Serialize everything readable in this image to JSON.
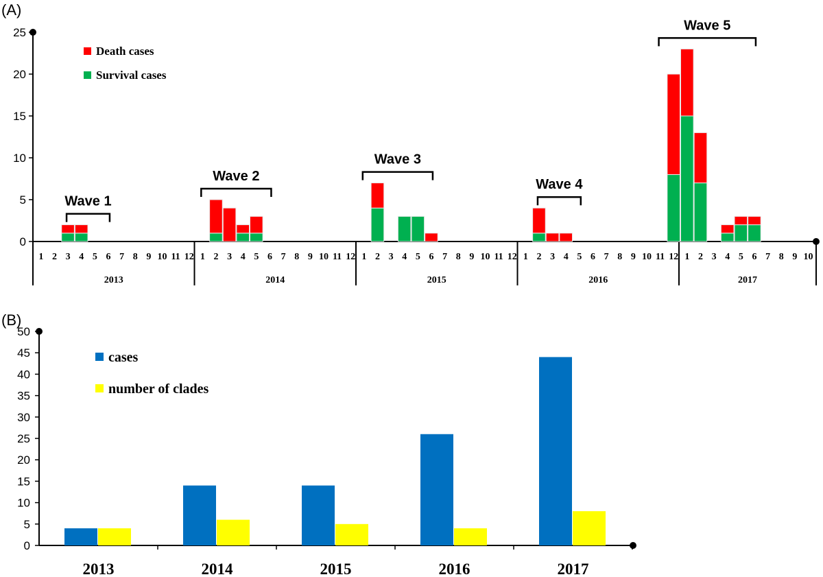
{
  "panels": {
    "a_label": "(A)",
    "b_label": "(B)"
  },
  "colors": {
    "death": "#ff0000",
    "survival": "#00b050",
    "cases": "#0070c0",
    "clades": "#ffff00"
  },
  "chart_data": [
    {
      "type": "bar",
      "stacked": true,
      "ylim": [
        0,
        25
      ],
      "yticks": [
        0,
        5,
        10,
        15,
        20,
        25
      ],
      "legend": [
        "Death cases",
        "Survival cases"
      ],
      "years": [
        {
          "year": "2013",
          "months": 12
        },
        {
          "year": "2014",
          "months": 12
        },
        {
          "year": "2015",
          "months": 12
        },
        {
          "year": "2016",
          "months": 12
        },
        {
          "year": "2017",
          "months": 10
        }
      ],
      "series": [
        {
          "name": "Survival cases",
          "values": [
            0,
            0,
            1,
            1,
            0,
            0,
            0,
            0,
            0,
            0,
            0,
            0,
            0,
            1,
            0,
            1,
            1,
            0,
            0,
            0,
            0,
            0,
            0,
            0,
            0,
            4,
            0,
            3,
            3,
            0,
            0,
            0,
            0,
            0,
            0,
            0,
            0,
            1,
            0,
            0,
            0,
            0,
            0,
            0,
            0,
            0,
            0,
            8,
            15,
            7,
            0,
            1,
            2,
            2,
            0,
            0,
            0,
            0
          ]
        },
        {
          "name": "Death cases",
          "values": [
            0,
            0,
            1,
            1,
            0,
            0,
            0,
            0,
            0,
            0,
            0,
            0,
            0,
            4,
            4,
            1,
            2,
            0,
            0,
            0,
            0,
            0,
            0,
            0,
            0,
            3,
            0,
            0,
            0,
            1,
            0,
            0,
            0,
            0,
            0,
            0,
            0,
            3,
            1,
            1,
            0,
            0,
            0,
            0,
            0,
            0,
            0,
            12,
            8,
            6,
            0,
            1,
            1,
            1,
            0,
            0,
            0,
            0
          ]
        }
      ],
      "waves": [
        {
          "label": "Wave 1",
          "from": 2,
          "to": 5
        },
        {
          "label": "Wave 2",
          "from": 12,
          "to": 17
        },
        {
          "label": "Wave 3",
          "from": 24,
          "to": 29
        },
        {
          "label": "Wave 4",
          "from": 37,
          "to": 40
        },
        {
          "label": "Wave 5",
          "from": 46,
          "to": 53
        }
      ]
    },
    {
      "type": "bar",
      "ylim": [
        0,
        50
      ],
      "yticks": [
        0,
        5,
        10,
        15,
        20,
        25,
        30,
        35,
        40,
        45,
        50
      ],
      "categories": [
        "2013",
        "2014",
        "2015",
        "2016",
        "2017"
      ],
      "series": [
        {
          "name": "cases",
          "values": [
            4,
            14,
            14,
            26,
            44
          ]
        },
        {
          "name": "number of clades",
          "values": [
            4,
            6,
            5,
            4,
            8
          ]
        }
      ]
    }
  ]
}
